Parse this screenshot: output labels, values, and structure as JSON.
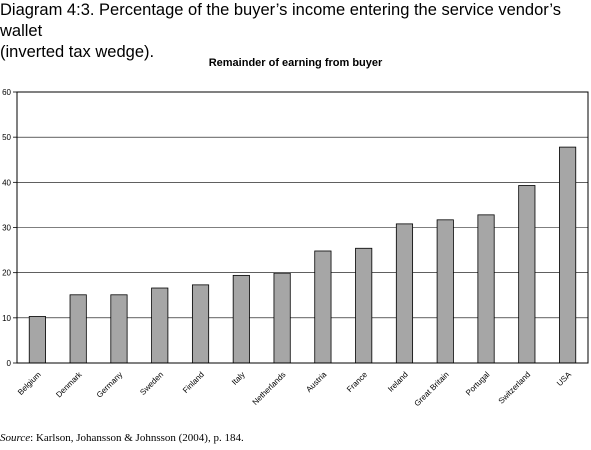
{
  "diagram_title_line1": "Diagram 4:3. Percentage of the buyer’s income entering the service vendor’s wallet",
  "diagram_title_line2": "(inverted tax wedge).",
  "source_label": "Source",
  "source_text": ": Karlson, Johansson & Johnsson (2004), p. 184.",
  "chart_data": {
    "type": "bar",
    "title": "Remainder of earning from buyer",
    "categories": [
      "Belgium",
      "Denmark",
      "Germany",
      "Sweden",
      "Finland",
      "Italy",
      "Netherlands",
      "Austria",
      "France",
      "Ireland",
      "Great Britain",
      "Portugal",
      "Switzerland",
      "USA"
    ],
    "values": [
      10.3,
      15.1,
      15.1,
      16.6,
      17.3,
      19.4,
      19.9,
      24.8,
      25.4,
      30.8,
      31.7,
      32.8,
      39.3,
      47.8
    ],
    "ylim": [
      0,
      60
    ],
    "yticks": [
      0,
      10,
      20,
      30,
      40,
      50,
      60
    ],
    "grid": true,
    "bar_color": "#a6a6a6",
    "border_color": "#000000",
    "grid_color": "#000000"
  }
}
